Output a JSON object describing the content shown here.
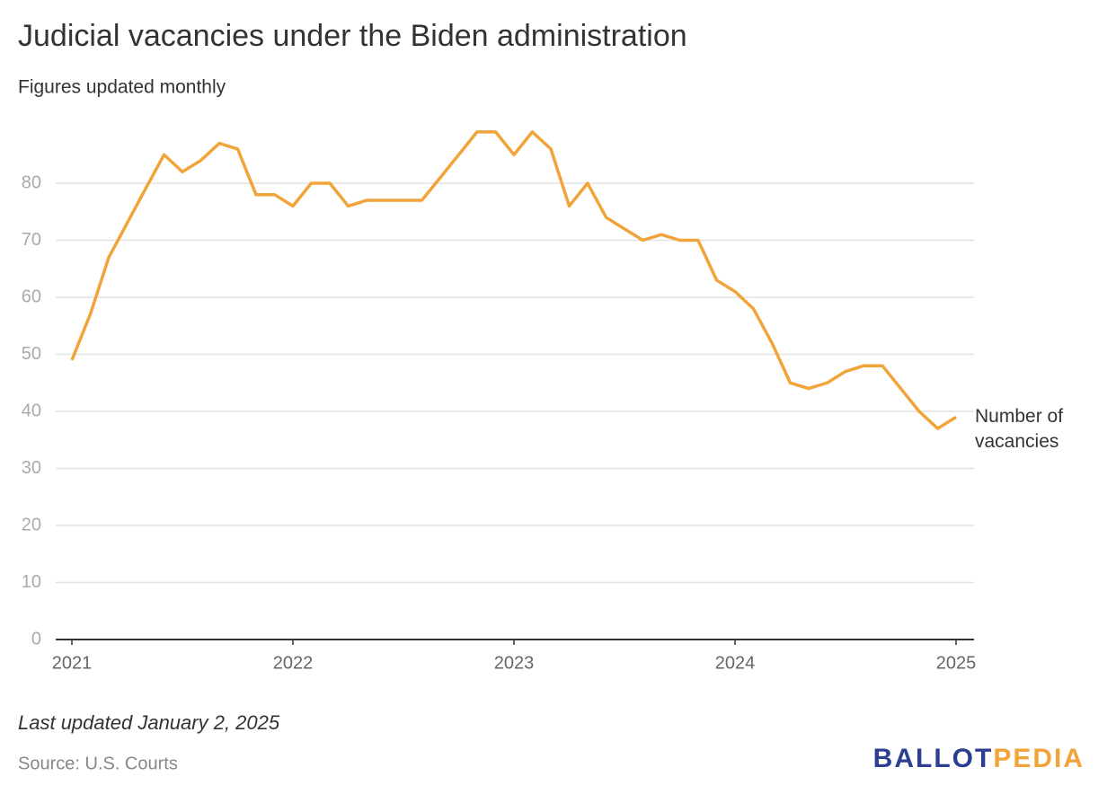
{
  "chart_data": {
    "type": "line",
    "title": "Judicial vacancies under the Biden administration",
    "subtitle": "Figures updated monthly",
    "note": "Last updated January 2, 2025",
    "source": "Source: U.S. Courts",
    "x": [
      2021,
      2021.083,
      2021.167,
      2021.25,
      2021.333,
      2021.417,
      2021.5,
      2021.583,
      2021.667,
      2021.75,
      2021.833,
      2021.917,
      2022,
      2022.083,
      2022.167,
      2022.25,
      2022.333,
      2022.417,
      2022.5,
      2022.583,
      2022.667,
      2022.75,
      2022.833,
      2022.917,
      2023,
      2023.083,
      2023.167,
      2023.25,
      2023.333,
      2023.417,
      2023.5,
      2023.583,
      2023.667,
      2023.75,
      2023.833,
      2023.917,
      2024,
      2024.083,
      2024.167,
      2024.25,
      2024.333,
      2024.417,
      2024.5,
      2024.583,
      2024.667,
      2024.75,
      2024.833,
      2024.917,
      2025
    ],
    "series": [
      {
        "name": "Number of vacancies",
        "color": "#f0a43a",
        "values": [
          49,
          57,
          67,
          73,
          79,
          85,
          82,
          84,
          87,
          86,
          78,
          78,
          76,
          80,
          80,
          76,
          77,
          77,
          77,
          77,
          81,
          85,
          89,
          89,
          85,
          89,
          86,
          76,
          80,
          74,
          72,
          70,
          71,
          70,
          70,
          63,
          61,
          58,
          52,
          45,
          44,
          45,
          47,
          48,
          48,
          44,
          40,
          37,
          39
        ]
      }
    ],
    "xlim": [
      2021,
      2025
    ],
    "xticks": [
      2021,
      2022,
      2023,
      2024,
      2025
    ],
    "ylim": [
      0,
      90
    ],
    "yticks": [
      0,
      10,
      20,
      30,
      40,
      50,
      60,
      70,
      80
    ],
    "grid": true
  },
  "branding": {
    "logo_left": "BALLOT",
    "logo_right": "PEDIA"
  }
}
